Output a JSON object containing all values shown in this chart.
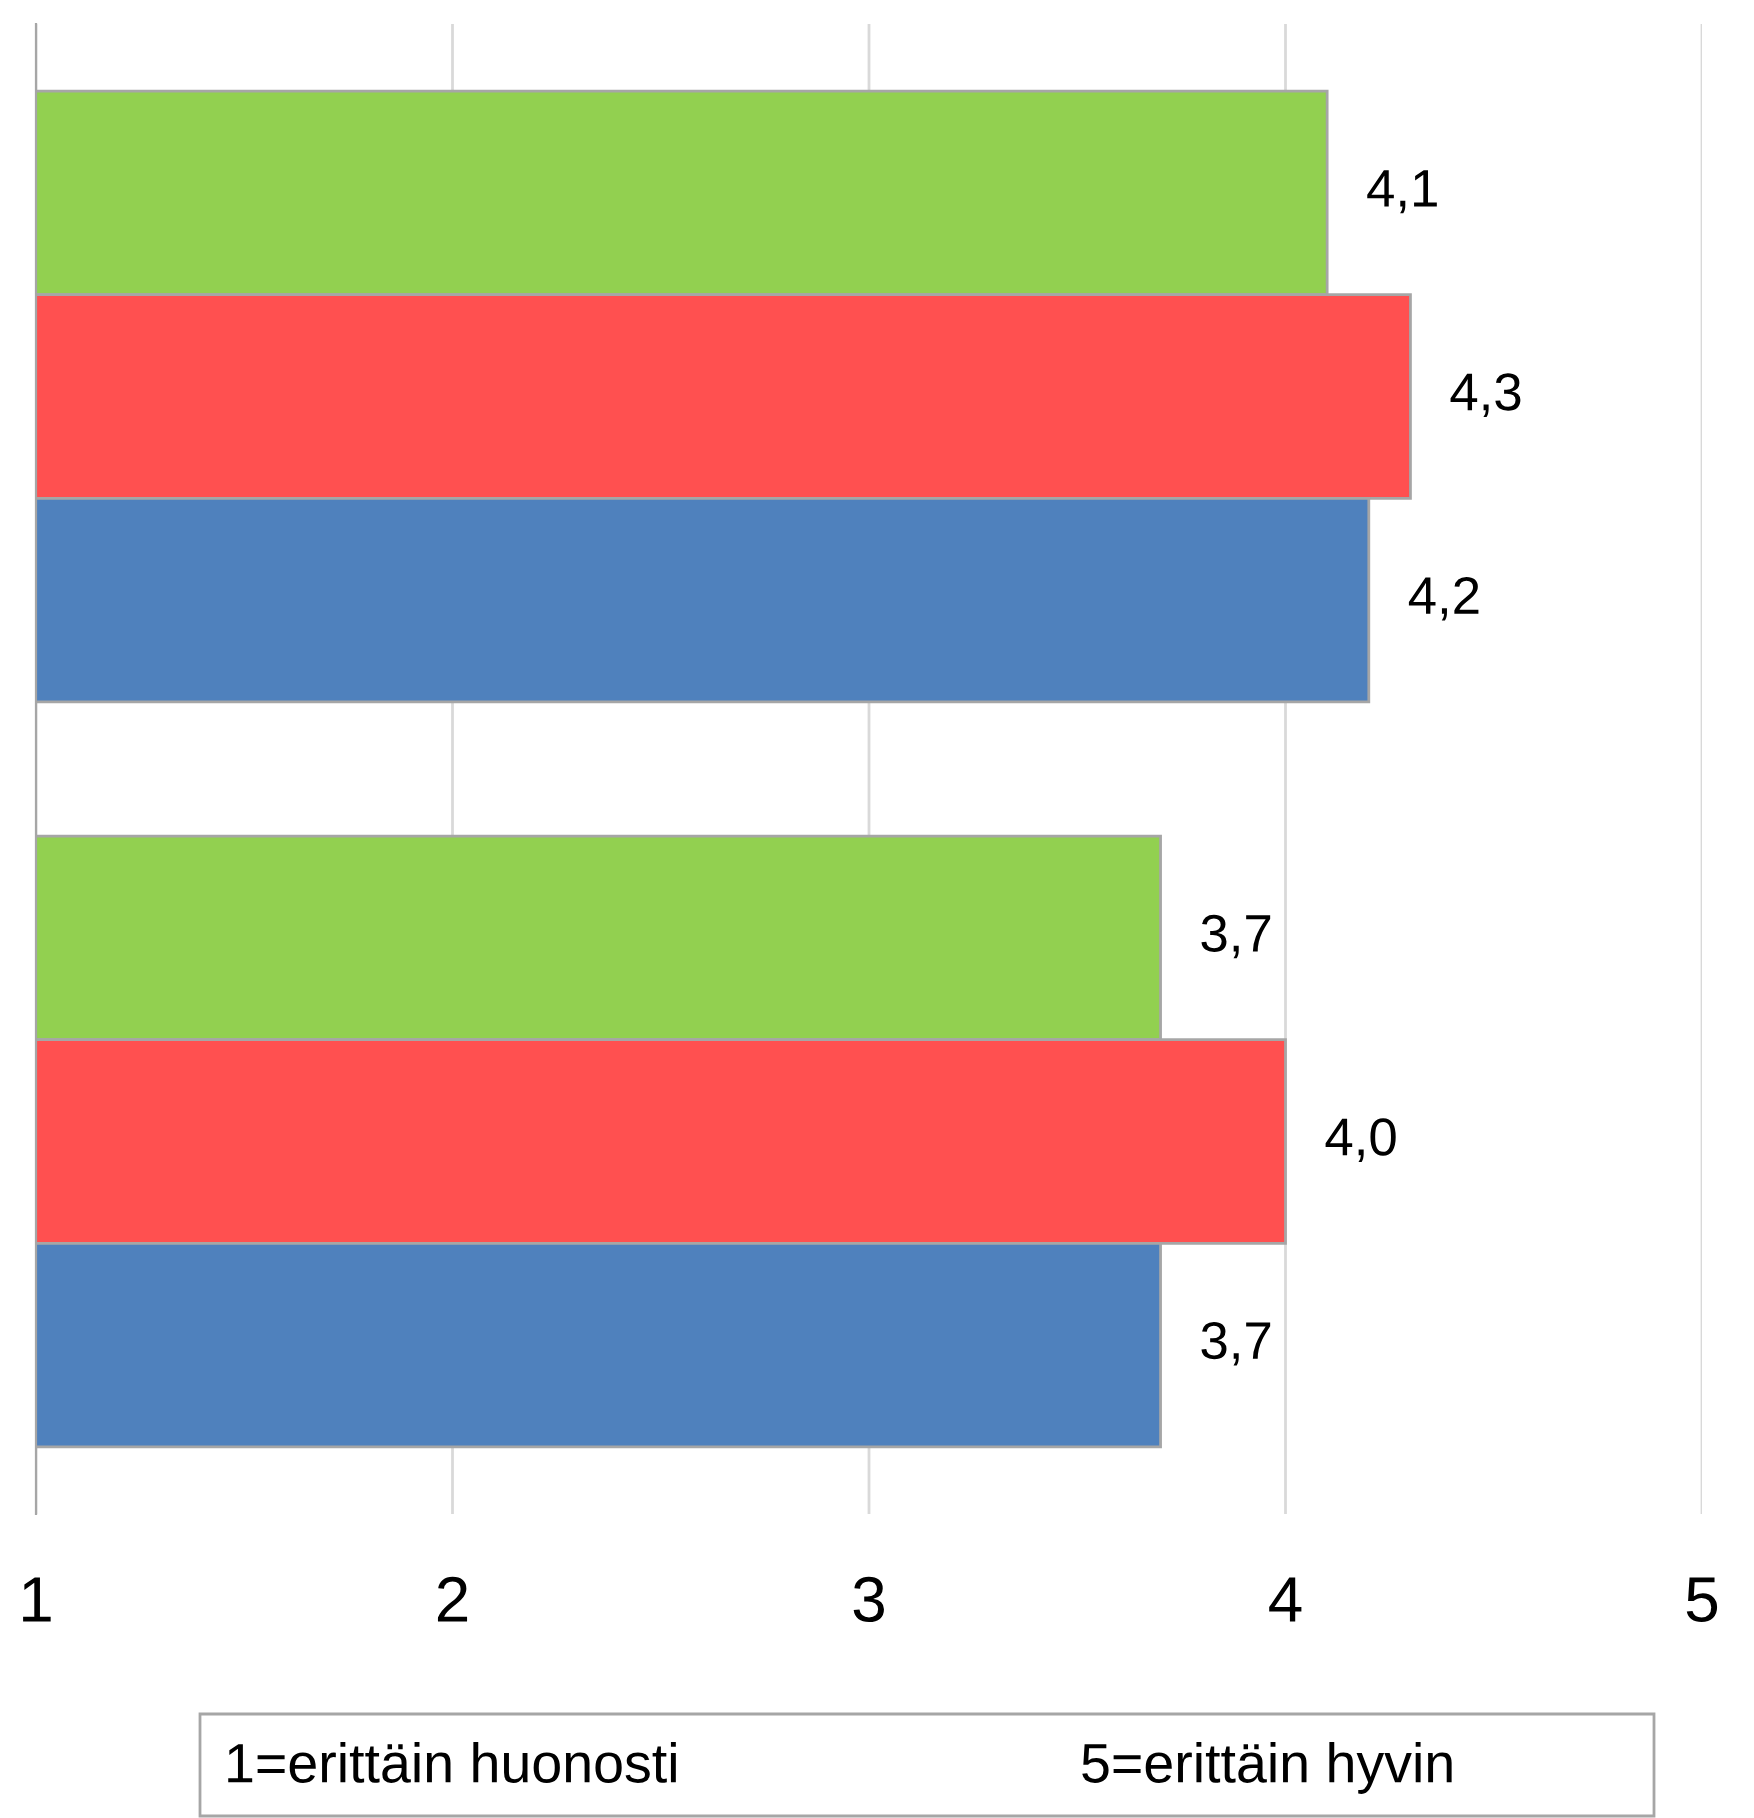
{
  "chart_data": {
    "type": "bar",
    "orientation": "horizontal",
    "categories": [
      null,
      null
    ],
    "series": [
      {
        "color": "#92d050",
        "values": [
          4.1,
          3.7
        ],
        "value_labels": [
          "4,1",
          "3,7"
        ]
      },
      {
        "color": "#ff5050",
        "values": [
          4.3,
          4.0
        ],
        "value_labels": [
          "4,3",
          "4,0"
        ]
      },
      {
        "color": "#4f81bd",
        "values": [
          4.2,
          3.7
        ],
        "value_labels": [
          "4,2",
          "3,7"
        ]
      }
    ],
    "xlim": [
      1,
      5
    ],
    "xticks": [
      1,
      2,
      3,
      4,
      5
    ],
    "grid": "x",
    "tick_labels": "x",
    "annotations": [
      "1=erittäin huonosti",
      "5=erittäin hyvin"
    ]
  }
}
